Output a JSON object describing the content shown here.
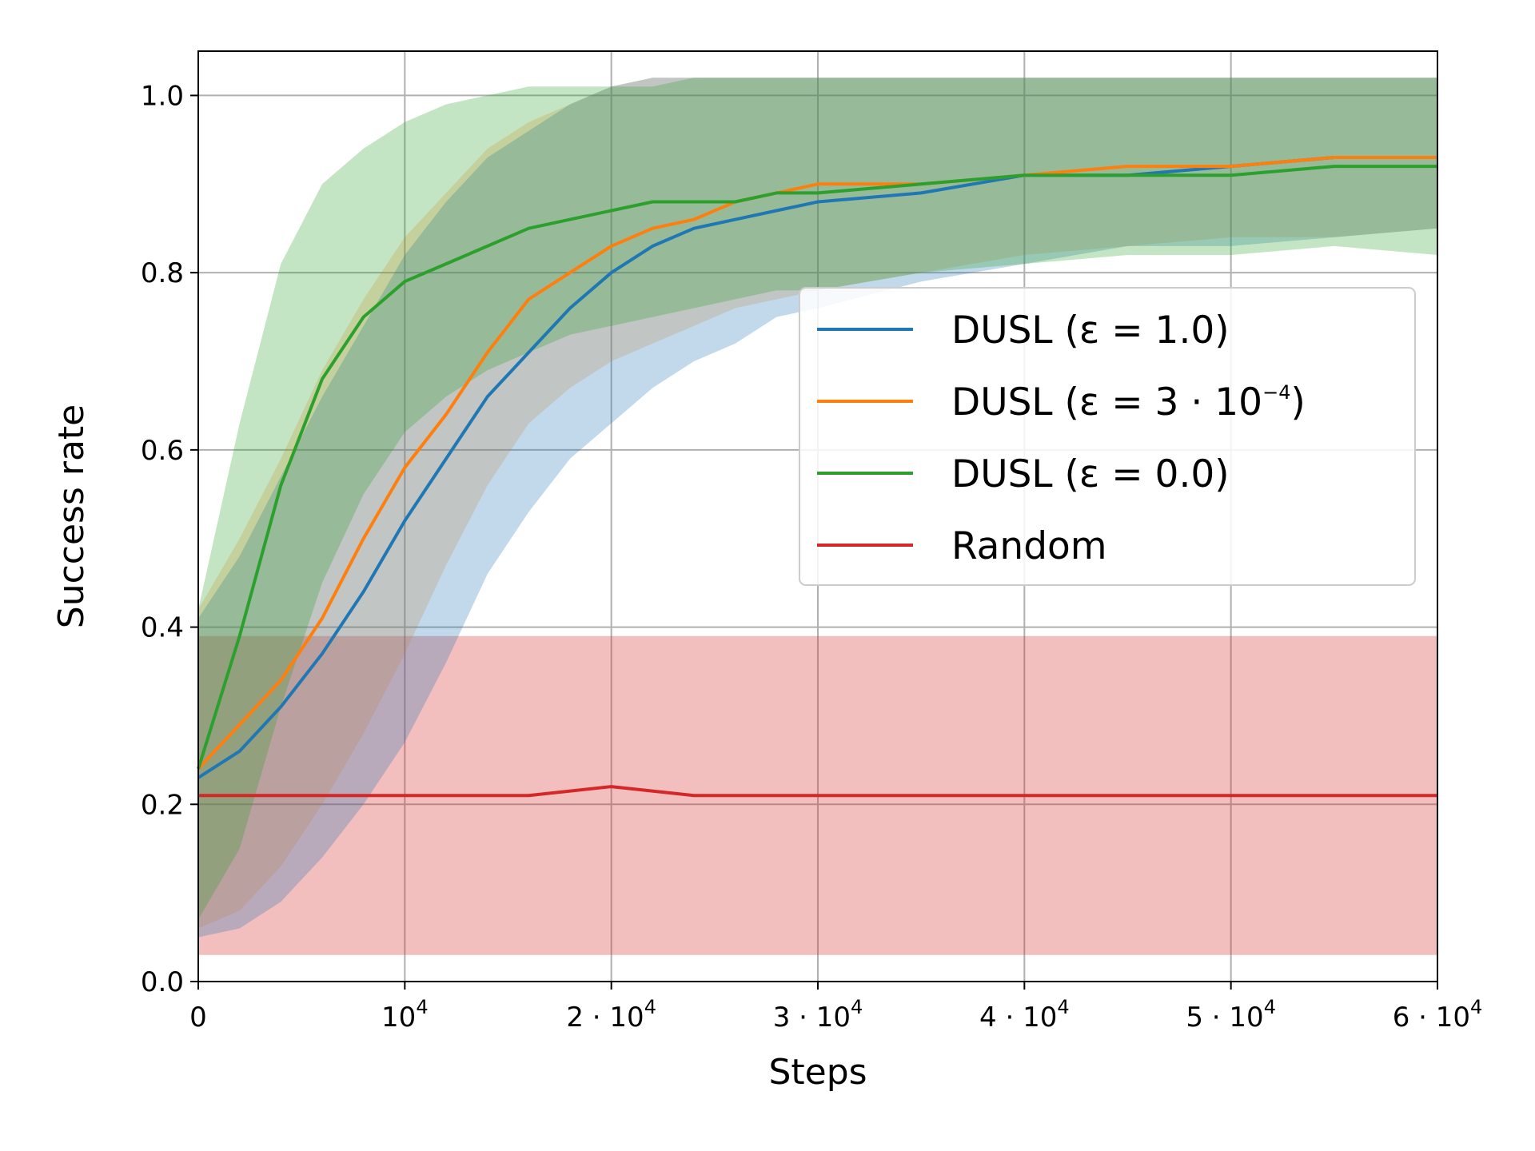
{
  "chart_data": {
    "type": "line",
    "xlabel": "Steps",
    "ylabel": "Success rate",
    "xlim": [
      0,
      60000
    ],
    "ylim": [
      0,
      1.05
    ],
    "grid": true,
    "legend_position": "center-right",
    "x_ticks": [
      {
        "value": 0,
        "mantissa": "",
        "label": "0"
      },
      {
        "value": 10000,
        "mantissa": "",
        "label": "10",
        "exp": "4"
      },
      {
        "value": 20000,
        "mantissa": "2",
        "label": "10",
        "exp": "4"
      },
      {
        "value": 30000,
        "mantissa": "3",
        "label": "10",
        "exp": "4"
      },
      {
        "value": 40000,
        "mantissa": "4",
        "label": "10",
        "exp": "4"
      },
      {
        "value": 50000,
        "mantissa": "5",
        "label": "10",
        "exp": "4"
      },
      {
        "value": 60000,
        "mantissa": "6",
        "label": "10",
        "exp": "4"
      }
    ],
    "y_ticks": [
      {
        "value": 0.0,
        "label": "0.0"
      },
      {
        "value": 0.2,
        "label": "0.2"
      },
      {
        "value": 0.4,
        "label": "0.4"
      },
      {
        "value": 0.6,
        "label": "0.6"
      },
      {
        "value": 0.8,
        "label": "0.8"
      },
      {
        "value": 1.0,
        "label": "1.0"
      }
    ],
    "series": [
      {
        "name": "DUSL (ε = 1.0)",
        "legend_label": "DUSL (ε = 1.0)",
        "color": "#1f77b4",
        "band_color": "#1f77b4",
        "band_opacity": 0.28,
        "x": [
          0,
          2000,
          4000,
          6000,
          8000,
          10000,
          12000,
          14000,
          16000,
          18000,
          20000,
          22000,
          24000,
          26000,
          28000,
          30000,
          35000,
          40000,
          45000,
          50000,
          55000,
          60000
        ],
        "mean": [
          0.23,
          0.26,
          0.31,
          0.37,
          0.44,
          0.52,
          0.59,
          0.66,
          0.71,
          0.76,
          0.8,
          0.83,
          0.85,
          0.86,
          0.87,
          0.88,
          0.89,
          0.91,
          0.91,
          0.92,
          0.93,
          0.93
        ],
        "lower": [
          0.05,
          0.06,
          0.09,
          0.14,
          0.2,
          0.27,
          0.36,
          0.46,
          0.53,
          0.59,
          0.63,
          0.67,
          0.7,
          0.72,
          0.75,
          0.76,
          0.79,
          0.81,
          0.83,
          0.83,
          0.84,
          0.85
        ],
        "upper": [
          0.41,
          0.48,
          0.57,
          0.66,
          0.74,
          0.82,
          0.88,
          0.93,
          0.96,
          0.99,
          1.01,
          1.02,
          1.02,
          1.02,
          1.02,
          1.02,
          1.02,
          1.02,
          1.02,
          1.02,
          1.02,
          1.02
        ]
      },
      {
        "name": "DUSL (ε = 3·10^-4)",
        "legend_label": "DUSL (ε = 3 · 10",
        "legend_exp": "−4",
        "legend_suffix": ")",
        "color": "#ff7f0e",
        "band_color": "#ff7f0e",
        "band_opacity": 0.22,
        "x": [
          0,
          2000,
          4000,
          6000,
          8000,
          10000,
          12000,
          14000,
          16000,
          18000,
          20000,
          22000,
          24000,
          26000,
          28000,
          30000,
          35000,
          40000,
          45000,
          50000,
          55000,
          60000
        ],
        "mean": [
          0.24,
          0.29,
          0.34,
          0.41,
          0.5,
          0.58,
          0.64,
          0.71,
          0.77,
          0.8,
          0.83,
          0.85,
          0.86,
          0.88,
          0.89,
          0.9,
          0.9,
          0.91,
          0.92,
          0.92,
          0.93,
          0.93
        ],
        "lower": [
          0.06,
          0.08,
          0.13,
          0.2,
          0.28,
          0.37,
          0.47,
          0.56,
          0.63,
          0.67,
          0.7,
          0.72,
          0.74,
          0.76,
          0.77,
          0.78,
          0.8,
          0.82,
          0.83,
          0.84,
          0.84,
          0.85
        ],
        "upper": [
          0.42,
          0.5,
          0.59,
          0.69,
          0.77,
          0.84,
          0.89,
          0.94,
          0.97,
          0.99,
          1.01,
          1.02,
          1.02,
          1.02,
          1.02,
          1.02,
          1.02,
          1.02,
          1.02,
          1.02,
          1.02,
          1.02
        ]
      },
      {
        "name": "DUSL (ε = 0.0)",
        "legend_label": "DUSL (ε = 0.0)",
        "color": "#2ca02c",
        "band_color": "#2ca02c",
        "band_opacity": 0.28,
        "x": [
          0,
          2000,
          4000,
          6000,
          8000,
          10000,
          12000,
          14000,
          16000,
          18000,
          20000,
          22000,
          24000,
          26000,
          28000,
          30000,
          35000,
          40000,
          45000,
          50000,
          55000,
          60000
        ],
        "mean": [
          0.24,
          0.39,
          0.56,
          0.68,
          0.75,
          0.79,
          0.81,
          0.83,
          0.85,
          0.86,
          0.87,
          0.88,
          0.88,
          0.88,
          0.89,
          0.89,
          0.9,
          0.91,
          0.91,
          0.91,
          0.92,
          0.92
        ],
        "lower": [
          0.07,
          0.15,
          0.31,
          0.45,
          0.55,
          0.62,
          0.66,
          0.69,
          0.71,
          0.73,
          0.74,
          0.75,
          0.76,
          0.77,
          0.78,
          0.78,
          0.8,
          0.81,
          0.82,
          0.82,
          0.83,
          0.82
        ],
        "upper": [
          0.42,
          0.63,
          0.81,
          0.9,
          0.94,
          0.97,
          0.99,
          1.0,
          1.01,
          1.01,
          1.01,
          1.01,
          1.02,
          1.02,
          1.02,
          1.02,
          1.02,
          1.02,
          1.02,
          1.02,
          1.02,
          1.02
        ]
      },
      {
        "name": "Random",
        "legend_label": "Random",
        "color": "#d62728",
        "band_color": "#d62728",
        "band_opacity": 0.3,
        "x": [
          0,
          4000,
          8000,
          12000,
          16000,
          20000,
          24000,
          28000,
          32000,
          36000,
          40000,
          44000,
          48000,
          52000,
          56000,
          60000
        ],
        "mean": [
          0.21,
          0.21,
          0.21,
          0.21,
          0.21,
          0.22,
          0.21,
          0.21,
          0.21,
          0.21,
          0.21,
          0.21,
          0.21,
          0.21,
          0.21,
          0.21
        ],
        "lower": [
          0.03,
          0.03,
          0.03,
          0.03,
          0.03,
          0.03,
          0.03,
          0.03,
          0.03,
          0.03,
          0.03,
          0.03,
          0.03,
          0.03,
          0.03,
          0.03
        ],
        "upper": [
          0.39,
          0.39,
          0.39,
          0.39,
          0.39,
          0.39,
          0.39,
          0.39,
          0.39,
          0.39,
          0.39,
          0.39,
          0.39,
          0.39,
          0.39,
          0.39
        ]
      }
    ]
  }
}
